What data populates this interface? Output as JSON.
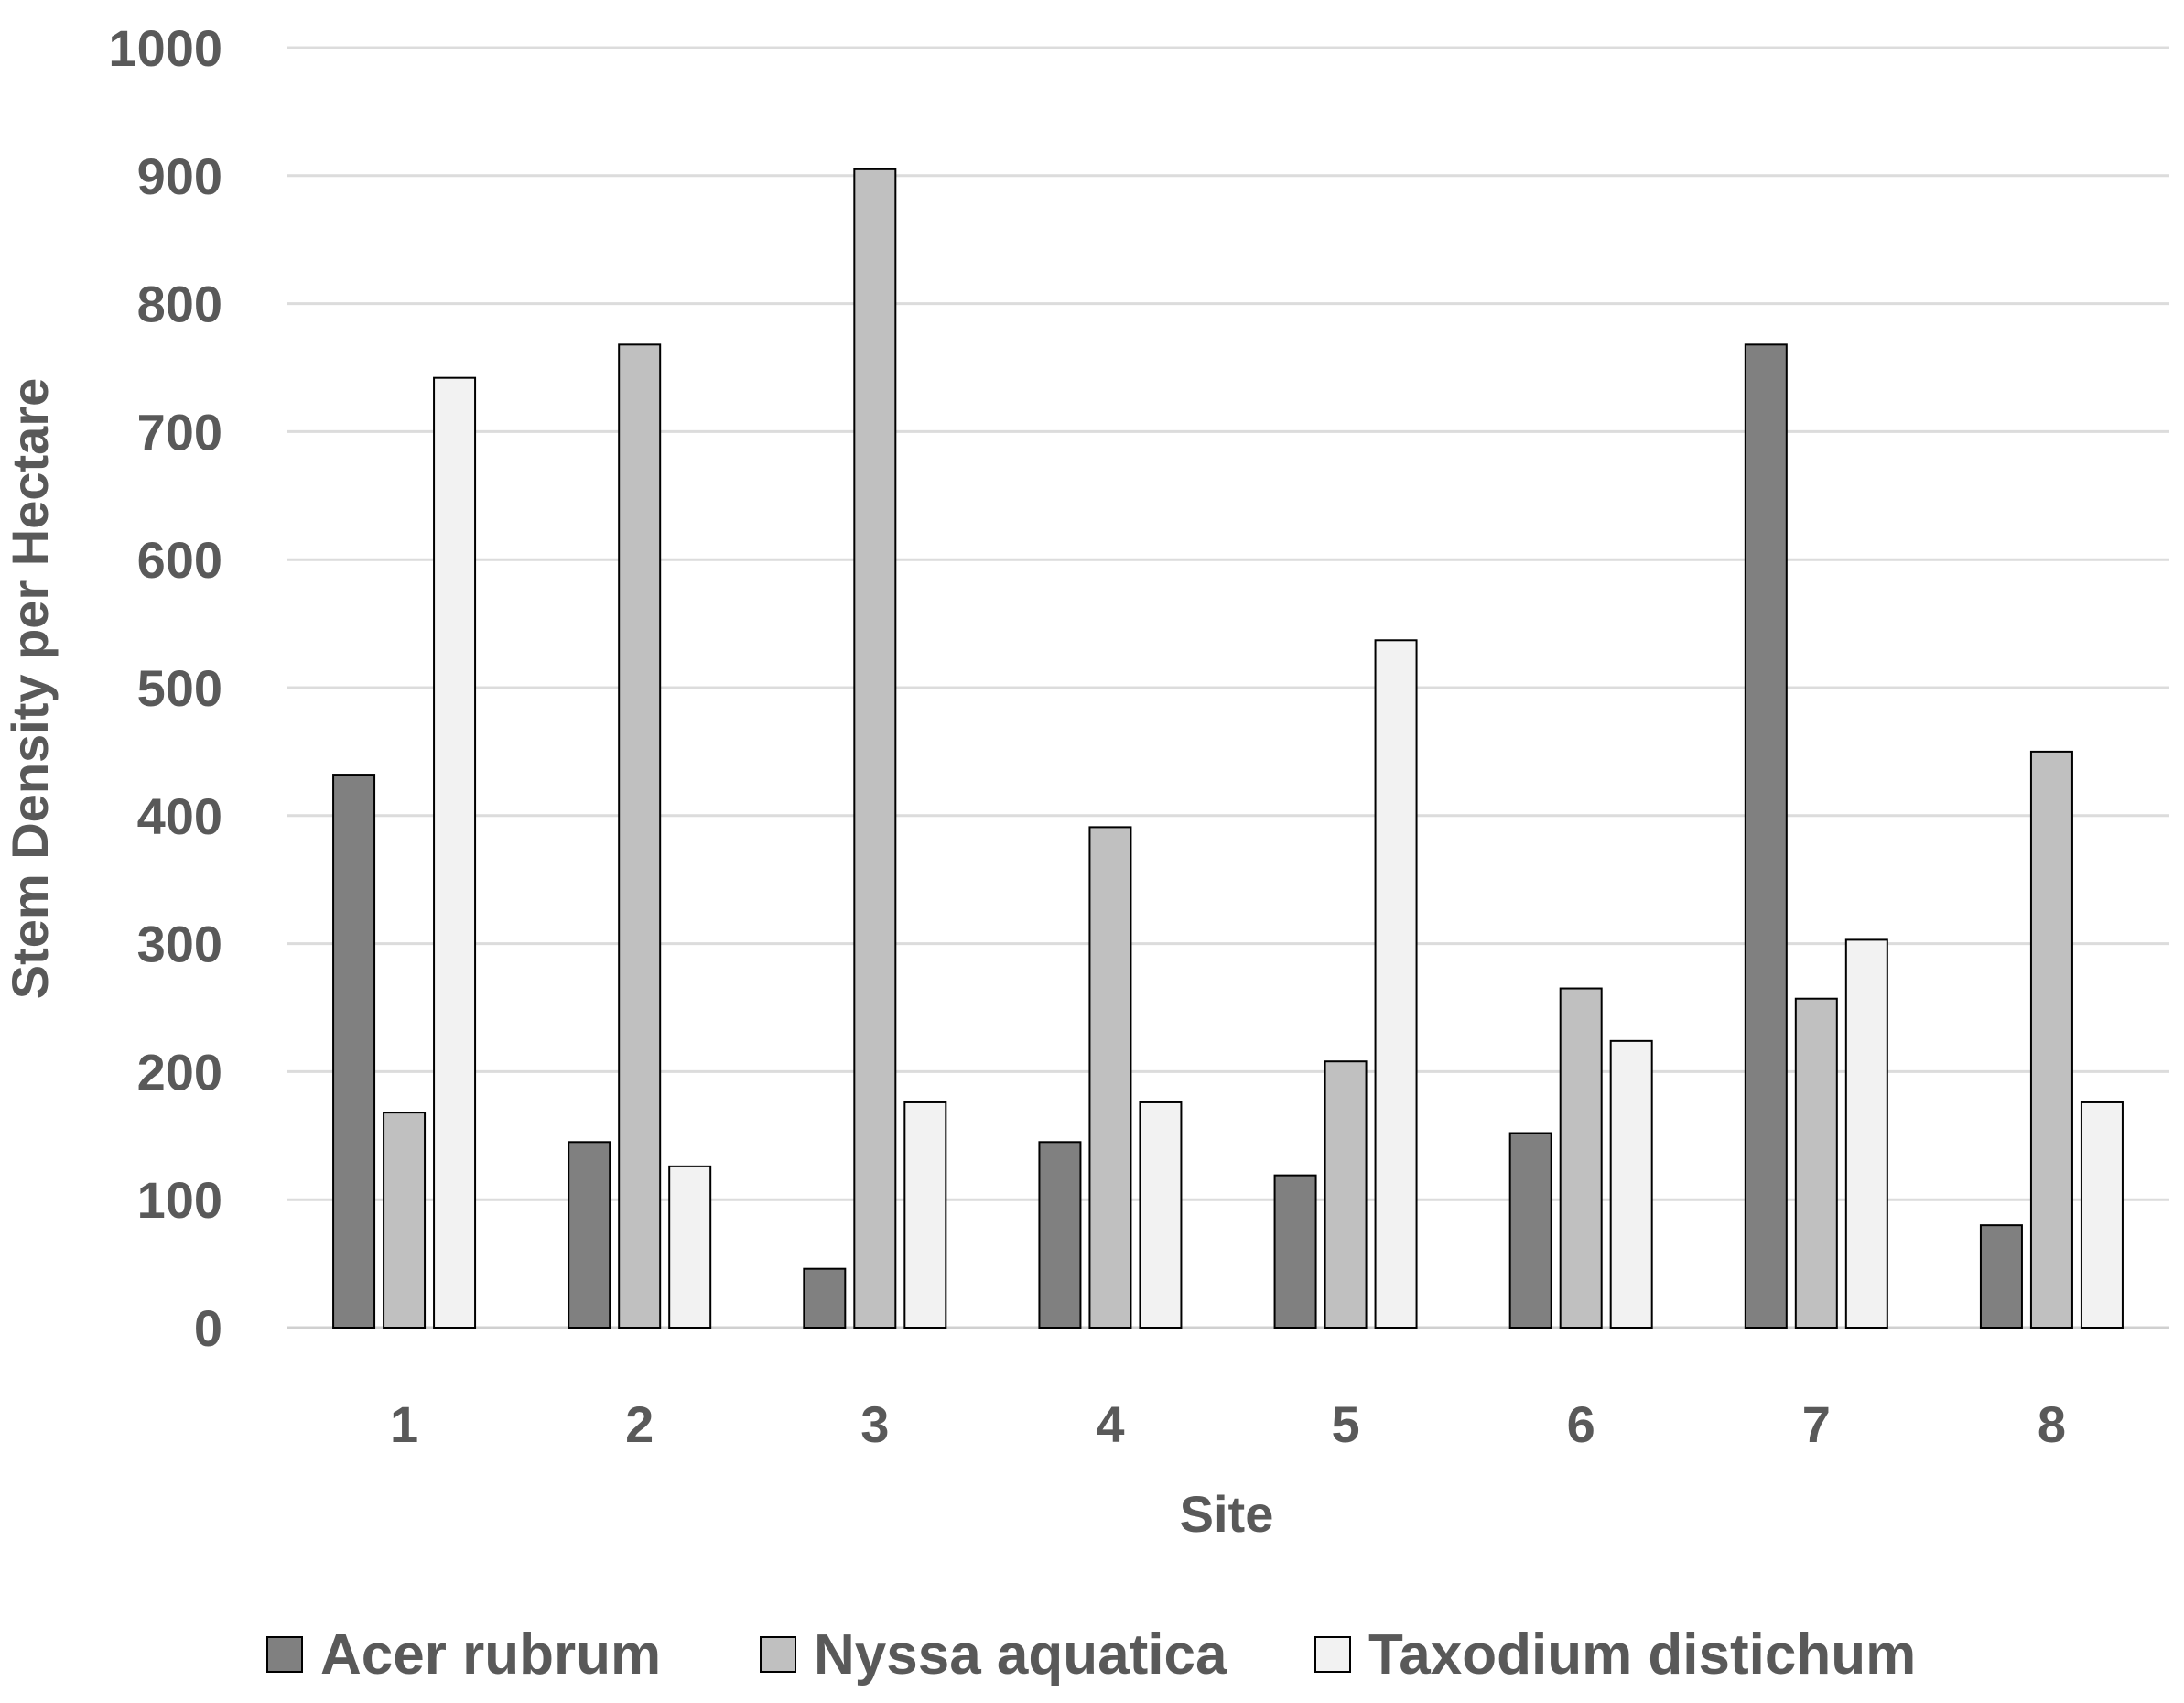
{
  "chart_data": {
    "type": "bar",
    "title": "",
    "xlabel": "Site",
    "ylabel": "Stem Density per Hectare",
    "categories": [
      "1",
      "2",
      "3",
      "4",
      "5",
      "6",
      "7",
      "8"
    ],
    "ylim": [
      0,
      1000
    ],
    "yticks": [
      0,
      100,
      200,
      300,
      400,
      500,
      600,
      700,
      800,
      900,
      1000
    ],
    "grid": true,
    "legend_position": "bottom",
    "series": [
      {
        "name": "Acer rubrum",
        "color": "#808080",
        "values": [
          432,
          145,
          46,
          145,
          119,
          152,
          768,
          80
        ]
      },
      {
        "name": "Nyssa aquatica",
        "color": "#c0c0c0",
        "values": [
          168,
          768,
          905,
          391,
          208,
          265,
          257,
          450
        ]
      },
      {
        "name": "Taxodium distichum",
        "color": "#f2f2f2",
        "values": [
          742,
          126,
          176,
          176,
          537,
          224,
          303,
          176
        ]
      }
    ]
  }
}
